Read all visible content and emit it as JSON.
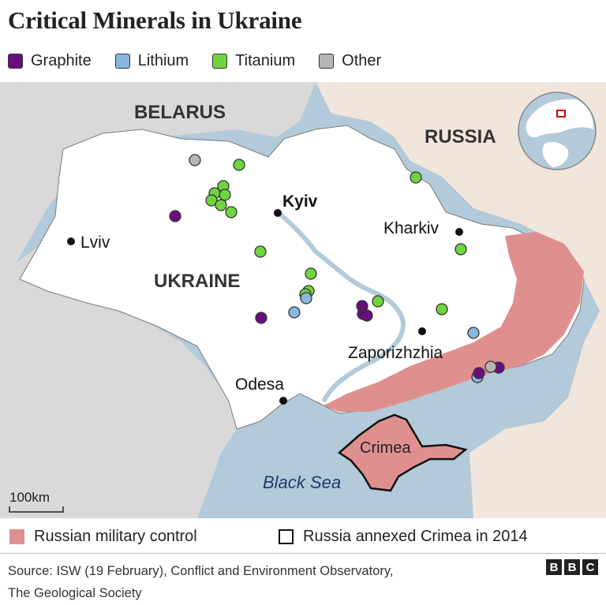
{
  "title": "Critical Minerals in Ukraine",
  "legend": [
    {
      "key": "graphite",
      "label": "Graphite",
      "color": "#6a0e7f"
    },
    {
      "key": "lithium",
      "label": "Lithium",
      "color": "#89b8de"
    },
    {
      "key": "titanium",
      "label": "Titanium",
      "color": "#6fd53e"
    },
    {
      "key": "other",
      "label": "Other",
      "color": "#b5b5b5"
    }
  ],
  "map": {
    "countries": {
      "belarus": "BELARUS",
      "russia": "RUSSIA",
      "ukraine": "UKRAINE"
    },
    "sea": "Black Sea",
    "cities": {
      "kyiv": "Kyiv",
      "kharkiv": "Kharkiv",
      "lviv": "Lviv",
      "zaporizhzhia": "Zaporizhzhia",
      "odesa": "Odesa"
    },
    "region": "Crimea",
    "scale": "100km",
    "colors": {
      "water": "#b2cad9",
      "ukraine": "#ffffff",
      "neighbour": "#d9d9d9",
      "russia": "#f1e6dc",
      "occupied": "#e08f8f",
      "border": "#4a4a4a"
    }
  },
  "bottom_legend": {
    "control_label": "Russian military control",
    "crimea_label": "Russia annexed Crimea in 2014",
    "control_color": "#e08f8f"
  },
  "source_line1": "Source: ISW (19 February), Conflict and Environment Observatory,",
  "source_line2": "The Geological Society",
  "logo": [
    "B",
    "B",
    "C"
  ]
}
